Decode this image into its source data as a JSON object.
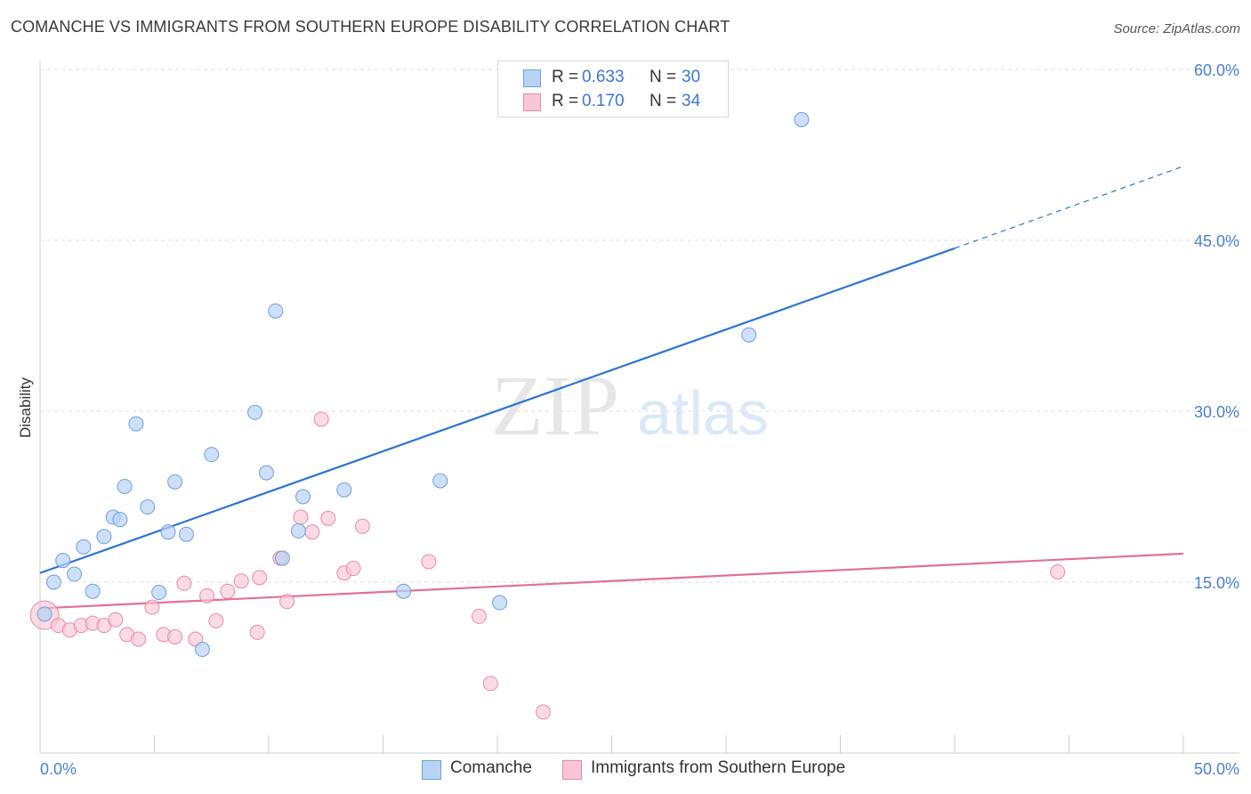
{
  "title": "COMANCHE VS IMMIGRANTS FROM SOUTHERN EUROPE DISABILITY CORRELATION CHART",
  "source": "Source: ZipAtlas.com",
  "watermark": {
    "zip": "ZIP",
    "atlas": "atlas"
  },
  "legend": {
    "rows": [
      {
        "r_label": "R =",
        "r_value": "0.633",
        "n_label": "N =",
        "n_value": "30"
      },
      {
        "r_label": "R =",
        "r_value": "0.170",
        "n_label": "N =",
        "n_value": "34"
      }
    ]
  },
  "colors": {
    "comanche_fill": "#b8d3f3",
    "comanche_stroke": "#6f9fdc",
    "comanche_line": "#2e74d0",
    "immigrants_fill": "#f8c6d4",
    "immigrants_stroke": "#e88aa6",
    "immigrants_line": "#e0709a",
    "tick_label": "#4a7fd0",
    "grid": "#dddddd"
  },
  "chart_data": {
    "type": "scatter",
    "title": "COMANCHE VS IMMIGRANTS FROM SOUTHERN EUROPE DISABILITY CORRELATION CHART",
    "xlabel": "",
    "ylabel": "Disability",
    "xlim": [
      0,
      50
    ],
    "ylim": [
      0,
      60
    ],
    "x_tick_labels": [
      "0.0%",
      "50.0%"
    ],
    "y_ticks": [
      15,
      30,
      45,
      60
    ],
    "y_tick_labels": [
      "15.0%",
      "30.0%",
      "45.0%",
      "60.0%"
    ],
    "grid": true,
    "legend_position": "top-center",
    "series": [
      {
        "name": "Comanche",
        "r": "0.633",
        "n": "30",
        "points": [
          [
            0.2,
            12.2
          ],
          [
            0.6,
            15.0
          ],
          [
            1.0,
            16.9
          ],
          [
            1.5,
            15.7
          ],
          [
            1.9,
            18.1
          ],
          [
            2.3,
            14.2
          ],
          [
            2.8,
            19.0
          ],
          [
            3.2,
            20.7
          ],
          [
            3.5,
            20.5
          ],
          [
            3.7,
            23.4
          ],
          [
            4.2,
            28.9
          ],
          [
            4.7,
            21.6
          ],
          [
            5.2,
            14.1
          ],
          [
            5.6,
            19.4
          ],
          [
            5.9,
            23.8
          ],
          [
            6.4,
            19.2
          ],
          [
            7.1,
            9.1
          ],
          [
            7.5,
            26.2
          ],
          [
            9.4,
            29.9
          ],
          [
            9.9,
            24.6
          ],
          [
            10.3,
            38.8
          ],
          [
            10.6,
            17.1
          ],
          [
            11.3,
            19.5
          ],
          [
            11.5,
            22.5
          ],
          [
            13.3,
            23.1
          ],
          [
            15.9,
            14.2
          ],
          [
            17.5,
            23.9
          ],
          [
            20.1,
            13.2
          ],
          [
            31.0,
            36.7
          ],
          [
            33.3,
            55.6
          ]
        ],
        "trend": {
          "x": [
            0,
            40
          ],
          "y": [
            15.8,
            44.3
          ]
        },
        "trend_ext": {
          "x": [
            40,
            50
          ],
          "y": [
            44.3,
            51.5
          ]
        }
      },
      {
        "name": "Immigrants from Southern Europe",
        "r": "0.170",
        "n": "34",
        "points": [
          [
            0.2,
            12.1
          ],
          [
            0.8,
            11.2
          ],
          [
            1.3,
            10.8
          ],
          [
            1.8,
            11.2
          ],
          [
            2.3,
            11.4
          ],
          [
            2.8,
            11.2
          ],
          [
            3.3,
            11.7
          ],
          [
            3.8,
            10.4
          ],
          [
            4.3,
            10.0
          ],
          [
            4.9,
            12.8
          ],
          [
            5.4,
            10.4
          ],
          [
            5.9,
            10.2
          ],
          [
            6.3,
            14.9
          ],
          [
            6.8,
            10.0
          ],
          [
            7.3,
            13.8
          ],
          [
            7.7,
            11.6
          ],
          [
            8.2,
            14.2
          ],
          [
            8.8,
            15.1
          ],
          [
            9.5,
            10.6
          ],
          [
            9.6,
            15.4
          ],
          [
            10.5,
            17.1
          ],
          [
            10.8,
            13.3
          ],
          [
            11.4,
            20.7
          ],
          [
            11.9,
            19.4
          ],
          [
            12.3,
            29.3
          ],
          [
            12.6,
            20.6
          ],
          [
            13.3,
            15.8
          ],
          [
            13.7,
            16.2
          ],
          [
            14.1,
            19.9
          ],
          [
            17.0,
            16.8
          ],
          [
            19.2,
            12.0
          ],
          [
            19.7,
            6.1
          ],
          [
            22.0,
            3.6
          ],
          [
            44.5,
            15.9
          ]
        ],
        "trend": {
          "x": [
            0,
            50
          ],
          "y": [
            12.7,
            17.5
          ]
        }
      }
    ]
  },
  "bottom_legend": {
    "items": [
      {
        "label": "Comanche"
      },
      {
        "label": "Immigrants from Southern Europe"
      }
    ]
  }
}
